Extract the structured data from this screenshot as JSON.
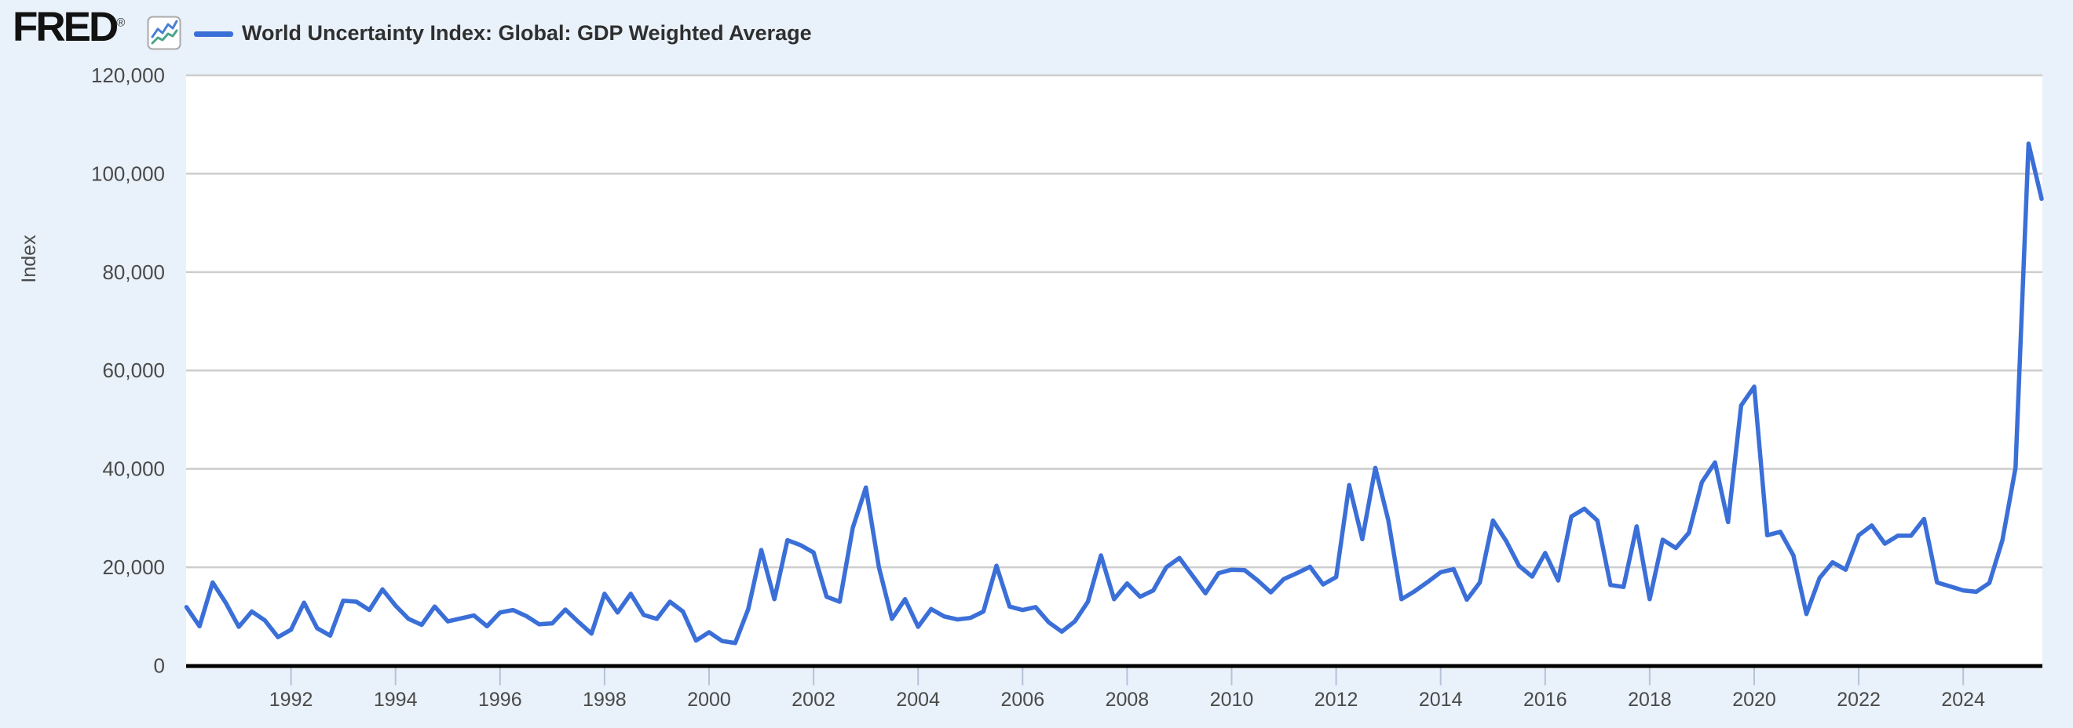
{
  "header": {
    "logo_text": "FRED",
    "logo_registered": "®",
    "fred_icon": "line-chart-icon",
    "legend_label": "World Uncertainty Index: Global: GDP Weighted Average"
  },
  "y_axis": {
    "label": "Index",
    "tick_labels": [
      "0",
      "20,000",
      "40,000",
      "60,000",
      "80,000",
      "100,000",
      "120,000"
    ]
  },
  "x_axis": {
    "tick_labels": [
      "1992",
      "1994",
      "1996",
      "1998",
      "2000",
      "2002",
      "2004",
      "2006",
      "2008",
      "2010",
      "2012",
      "2014",
      "2016",
      "2018",
      "2020",
      "2022",
      "2024"
    ]
  },
  "chart_data": {
    "type": "line",
    "title": "World Uncertainty Index: Global: GDP Weighted Average",
    "ylabel": "Index",
    "ylim": [
      0,
      120000
    ],
    "y_tick_step": 20000,
    "grid": "horizontal",
    "legend_position": "top-left",
    "frequency": "Quarterly",
    "start_period": "1990-Q1",
    "end_period": "2025-Q3",
    "start_year_decimal": 1990.0,
    "x_tick_years": [
      1992,
      1994,
      1996,
      1998,
      2000,
      2002,
      2004,
      2006,
      2008,
      2010,
      2012,
      2014,
      2016,
      2018,
      2020,
      2022,
      2024
    ],
    "series": [
      {
        "name": "World Uncertainty Index: Global: GDP Weighted Average",
        "color": "#3b6fd8",
        "values": [
          11900,
          8000,
          16900,
          12800,
          7900,
          11000,
          9200,
          5800,
          7300,
          12800,
          7600,
          6100,
          13200,
          13000,
          11300,
          15500,
          12200,
          9500,
          8300,
          12000,
          9000,
          9600,
          10200,
          8000,
          10800,
          11300,
          10100,
          8400,
          8600,
          11400,
          8900,
          6500,
          14600,
          10800,
          14600,
          10300,
          9500,
          13000,
          11000,
          5100,
          6800,
          5000,
          4600,
          11500,
          23500,
          13500,
          25500,
          24500,
          23000,
          14000,
          13000,
          28000,
          36200,
          20000,
          9500,
          13500,
          7900,
          11500,
          10000,
          9400,
          9700,
          11000,
          20300,
          12000,
          11300,
          11900,
          8800,
          6900,
          9000,
          13000,
          22400,
          13500,
          16700,
          14000,
          15300,
          20000,
          21900,
          18300,
          14700,
          18800,
          19500,
          19400,
          17300,
          14900,
          17600,
          18800,
          20100,
          16500,
          18000,
          36700,
          25700,
          40200,
          29500,
          13500,
          15100,
          17000,
          19000,
          19600,
          13400,
          16900,
          29500,
          25400,
          20300,
          18100,
          22900,
          17300,
          30300,
          31900,
          29500,
          16400,
          16000,
          28300,
          13500,
          25600,
          23900,
          27000,
          37300,
          41300,
          29200,
          52900,
          56700,
          26500,
          27200,
          22400,
          10500,
          17800,
          21000,
          19500,
          26500,
          28500,
          24800,
          26400,
          26400,
          29800,
          16900,
          16100,
          15300,
          15000,
          16800,
          25500,
          40200,
          106100,
          94900
        ]
      }
    ]
  },
  "colors": {
    "page_bg": "#e9f1fa",
    "plot_bg": "#ffffff",
    "gridline": "#cdcdcd",
    "axis": "#000000",
    "tick": "#b4c3da",
    "tick_label": "#4a4a4a",
    "title_text": "#2f2f2f",
    "logo": "#121212",
    "line": "#3b6fd8",
    "icon_blue": "#4a7fd6",
    "icon_teal": "#4aa58c",
    "icon_border": "#a9a9a9"
  }
}
